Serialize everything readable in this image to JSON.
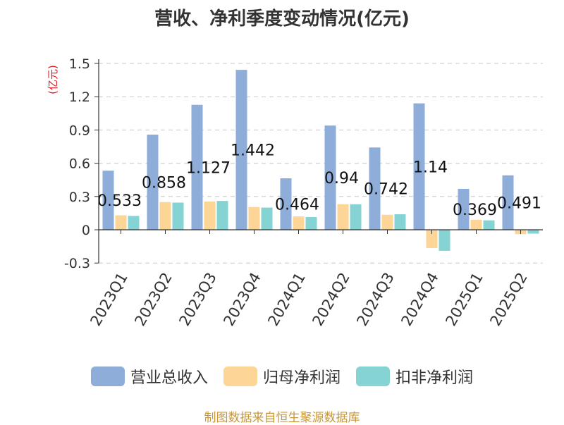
{
  "chart_data": {
    "type": "bar",
    "title": "营收、净利季度变动情况(亿元)",
    "ylabel": "(亿元)",
    "xlabel": "",
    "categories": [
      "2023Q1",
      "2023Q2",
      "2023Q3",
      "2023Q4",
      "2024Q1",
      "2024Q2",
      "2024Q3",
      "2024Q4",
      "2025Q1",
      "2025Q2"
    ],
    "ylim": [
      -0.3,
      1.5
    ],
    "yticks": [
      "-0.3",
      "0",
      "0.3",
      "0.6",
      "0.9",
      "1.2",
      "1.5"
    ],
    "ytick_values": [
      -0.3,
      0,
      0.3,
      0.6,
      0.9,
      1.2,
      1.5
    ],
    "grid": true,
    "legend_position": "bottom",
    "series": [
      {
        "name": "营业总收入",
        "color": "#8eadd9",
        "values": [
          0.533,
          0.858,
          1.127,
          1.442,
          0.464,
          0.94,
          0.742,
          1.14,
          0.369,
          0.491
        ],
        "labels": [
          "0.533",
          "0.858",
          "1.127",
          "1.442",
          "0.464",
          "0.94",
          "0.742",
          "1.14",
          "0.369",
          "0.491"
        ]
      },
      {
        "name": "归母净利润",
        "color": "#fdd597",
        "values": [
          0.13,
          0.25,
          0.255,
          0.205,
          0.12,
          0.23,
          0.135,
          -0.165,
          0.09,
          -0.04
        ]
      },
      {
        "name": "扣非净利润",
        "color": "#86d3d4",
        "values": [
          0.125,
          0.245,
          0.26,
          0.2,
          0.115,
          0.23,
          0.14,
          -0.19,
          0.085,
          -0.035
        ]
      }
    ]
  },
  "source": "制图数据来自恒生聚源数据库"
}
